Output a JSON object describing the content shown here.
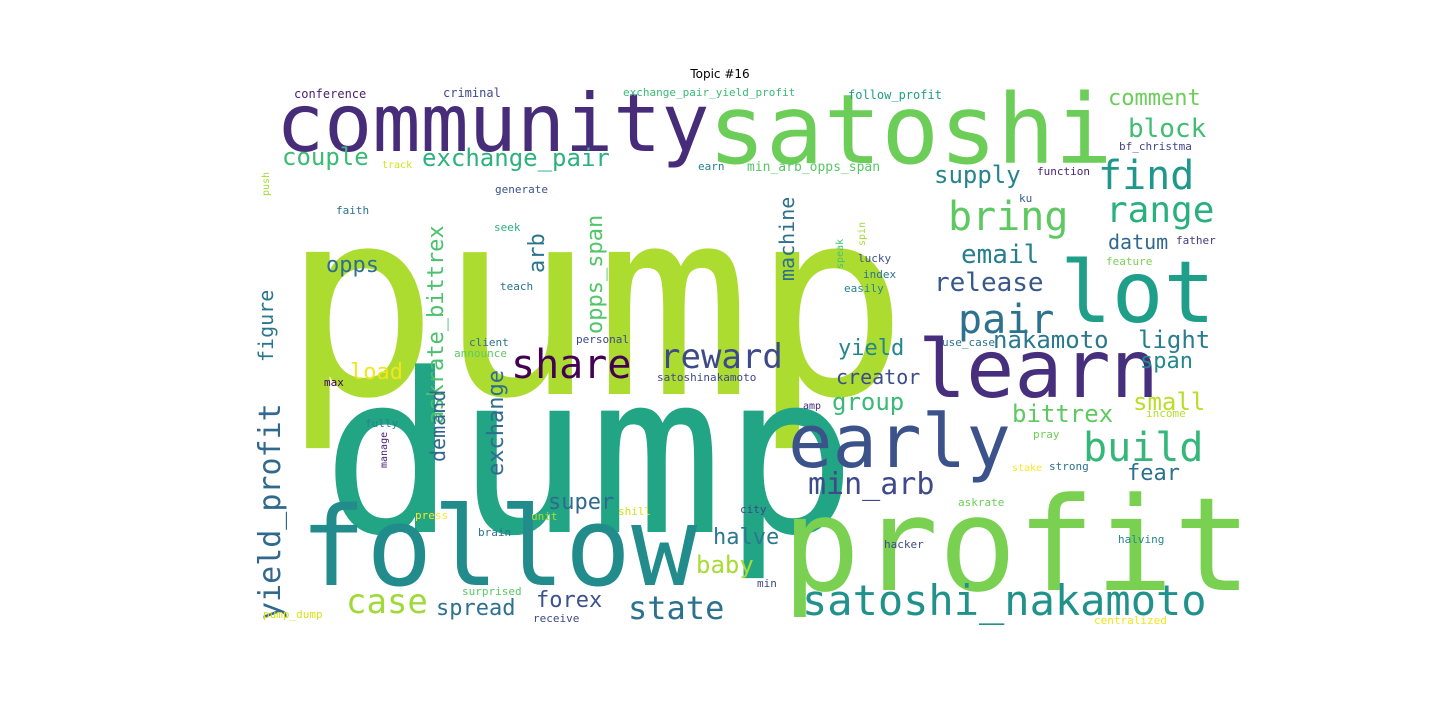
{
  "title": "Topic #16",
  "words": [
    {
      "text": "pump",
      "color": "#addc30"
    },
    {
      "text": "dump",
      "color": "#21a585"
    },
    {
      "text": "profit",
      "color": "#7ad151"
    },
    {
      "text": "follow",
      "color": "#228c8d"
    },
    {
      "text": "satoshi",
      "color": "#6cce59"
    },
    {
      "text": "community",
      "color": "#472c7a"
    },
    {
      "text": "learn",
      "color": "#472f7d"
    },
    {
      "text": "lot",
      "color": "#1f9e89"
    },
    {
      "text": "early",
      "color": "#3b528b"
    },
    {
      "text": "satoshi_nakamoto",
      "color": "#21918c"
    },
    {
      "text": "share",
      "color": "#440154"
    },
    {
      "text": "reward",
      "color": "#3e4989"
    },
    {
      "text": "bring",
      "color": "#5ec962"
    },
    {
      "text": "find",
      "color": "#1f988b"
    },
    {
      "text": "range",
      "color": "#2ab07f"
    },
    {
      "text": "build",
      "color": "#35b779"
    },
    {
      "text": "pair",
      "color": "#2c728e"
    },
    {
      "text": "min_arb",
      "color": "#3e4a89"
    },
    {
      "text": "state",
      "color": "#2c728e"
    },
    {
      "text": "case",
      "color": "#a0da39"
    },
    {
      "text": "exchange_pair",
      "color": "#2db27d"
    },
    {
      "text": "yield_profit",
      "color": "#31688e"
    },
    {
      "text": "exchange",
      "color": "#2f6c8e"
    },
    {
      "text": "askrate_bittrex",
      "color": "#4ac16d"
    },
    {
      "text": "opps_span",
      "color": "#52c569"
    },
    {
      "text": "arb",
      "color": "#2b758e"
    },
    {
      "text": "machine",
      "color": "#2d718e"
    },
    {
      "text": "demand",
      "color": "#32658e"
    },
    {
      "text": "figure",
      "color": "#2a788e"
    },
    {
      "text": "couple",
      "color": "#3bbb75"
    },
    {
      "text": "comment",
      "color": "#6ccd5a"
    },
    {
      "text": "block",
      "color": "#40bd72"
    },
    {
      "text": "supply",
      "color": "#25848e"
    },
    {
      "text": "email",
      "color": "#277f8e"
    },
    {
      "text": "release",
      "color": "#38588c"
    },
    {
      "text": "datum",
      "color": "#31688e"
    },
    {
      "text": "opps",
      "color": "#2e6e8e"
    },
    {
      "text": "nakamoto",
      "color": "#2a788e"
    },
    {
      "text": "light",
      "color": "#287d8e"
    },
    {
      "text": "yield",
      "color": "#24878e"
    },
    {
      "text": "creator",
      "color": "#3d4d8a"
    },
    {
      "text": "span",
      "color": "#23898e"
    },
    {
      "text": "group",
      "color": "#3aba76"
    },
    {
      "text": "bittrex",
      "color": "#5ec962"
    },
    {
      "text": "small",
      "color": "#b8de29"
    },
    {
      "text": "load",
      "color": "#f1e51d"
    },
    {
      "text": "fear",
      "color": "#2c728e"
    },
    {
      "text": "halve",
      "color": "#2a788e"
    },
    {
      "text": "baby",
      "color": "#a8db34"
    },
    {
      "text": "super",
      "color": "#30698e"
    },
    {
      "text": "forex",
      "color": "#3b528b"
    },
    {
      "text": "spread",
      "color": "#2c718e"
    },
    {
      "text": "conference",
      "color": "#481f70"
    },
    {
      "text": "criminal",
      "color": "#3e4989"
    },
    {
      "text": "exchange_pair_yield_profit",
      "color": "#3aba76"
    },
    {
      "text": "follow_profit",
      "color": "#1fa088"
    },
    {
      "text": "bf_christma",
      "color": "#414487"
    },
    {
      "text": "track",
      "color": "#d8e219"
    },
    {
      "text": "earn",
      "color": "#277f8e"
    },
    {
      "text": "min_arb_opps_span",
      "color": "#58c765"
    },
    {
      "text": "function",
      "color": "#482475"
    },
    {
      "text": "generate",
      "color": "#3b528b"
    },
    {
      "text": "push",
      "color": "#a5db36"
    },
    {
      "text": "ku",
      "color": "#34608d"
    },
    {
      "text": "faith",
      "color": "#2c728e"
    },
    {
      "text": "seek",
      "color": "#2ab07f"
    },
    {
      "text": "speak",
      "color": "#4ac16d"
    },
    {
      "text": "spin",
      "color": "#a0da39"
    },
    {
      "text": "father",
      "color": "#453781"
    },
    {
      "text": "lucky",
      "color": "#3b528b"
    },
    {
      "text": "feature",
      "color": "#7ad151"
    },
    {
      "text": "index",
      "color": "#2c728e"
    },
    {
      "text": "teach",
      "color": "#2c728e"
    },
    {
      "text": "easily",
      "color": "#26828e"
    },
    {
      "text": "client",
      "color": "#2c728e"
    },
    {
      "text": "personal",
      "color": "#3e4989"
    },
    {
      "text": "use_case",
      "color": "#2c728e"
    },
    {
      "text": "announce",
      "color": "#5ec962"
    },
    {
      "text": "max",
      "color": "#440154"
    },
    {
      "text": "satoshinakamoto",
      "color": "#3e4989"
    },
    {
      "text": "amp",
      "color": "#472c7a"
    },
    {
      "text": "income",
      "color": "#b5de2b"
    },
    {
      "text": "fully",
      "color": "#26828e"
    },
    {
      "text": "manage",
      "color": "#482374"
    },
    {
      "text": "pray",
      "color": "#6ccd5a"
    },
    {
      "text": "stake",
      "color": "#fde725"
    },
    {
      "text": "strong",
      "color": "#2c728e"
    },
    {
      "text": "askrate",
      "color": "#6ccd5a"
    },
    {
      "text": "city",
      "color": "#414487"
    },
    {
      "text": "press",
      "color": "#fde725"
    },
    {
      "text": "unit",
      "color": "#addc30"
    },
    {
      "text": "shill",
      "color": "#d2e21b"
    },
    {
      "text": "brain",
      "color": "#2c728e"
    },
    {
      "text": "hacker",
      "color": "#3e4989"
    },
    {
      "text": "halving",
      "color": "#24868e"
    },
    {
      "text": "min",
      "color": "#3e4989"
    },
    {
      "text": "surprised",
      "color": "#58c765"
    },
    {
      "text": "pump_dump",
      "color": "#d8e219"
    },
    {
      "text": "receive",
      "color": "#3e4989"
    },
    {
      "text": "centralized",
      "color": "#f1e51d"
    }
  ]
}
